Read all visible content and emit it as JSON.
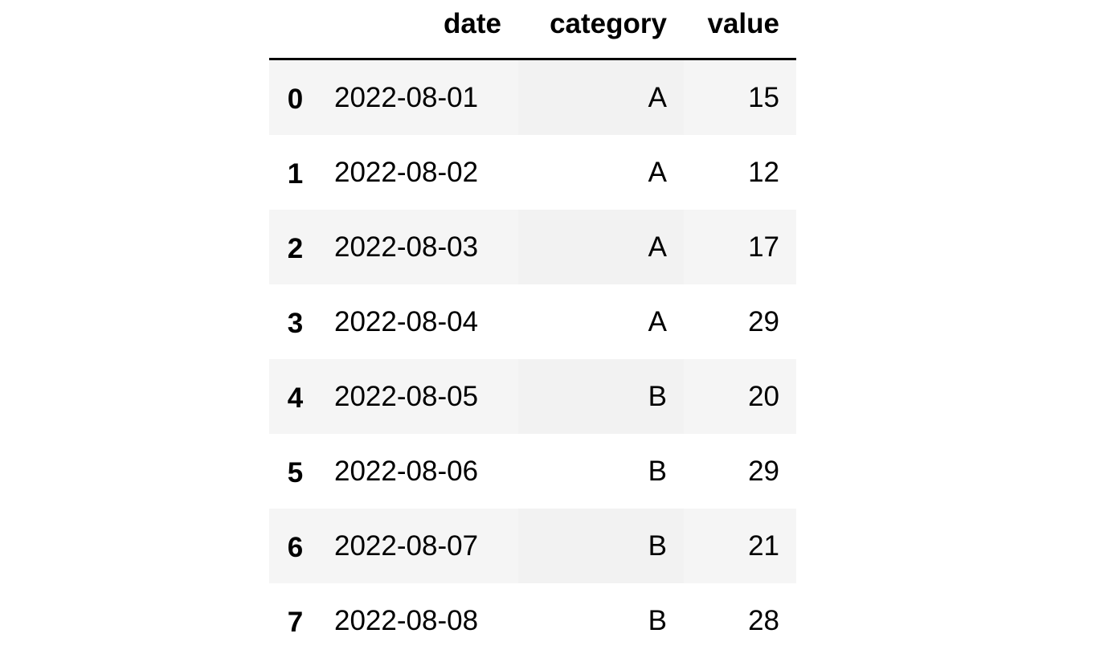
{
  "table": {
    "columns": [
      "date",
      "category",
      "value"
    ],
    "rows": [
      [
        0,
        "2022-08-01",
        "A",
        15
      ],
      [
        1,
        "2022-08-02",
        "A",
        12
      ],
      [
        2,
        "2022-08-03",
        "A",
        17
      ],
      [
        3,
        "2022-08-04",
        "A",
        29
      ],
      [
        4,
        "2022-08-05",
        "B",
        20
      ],
      [
        5,
        "2022-08-06",
        "B",
        29
      ],
      [
        6,
        "2022-08-07",
        "B",
        21
      ],
      [
        7,
        "2022-08-08",
        "B",
        28
      ]
    ]
  }
}
